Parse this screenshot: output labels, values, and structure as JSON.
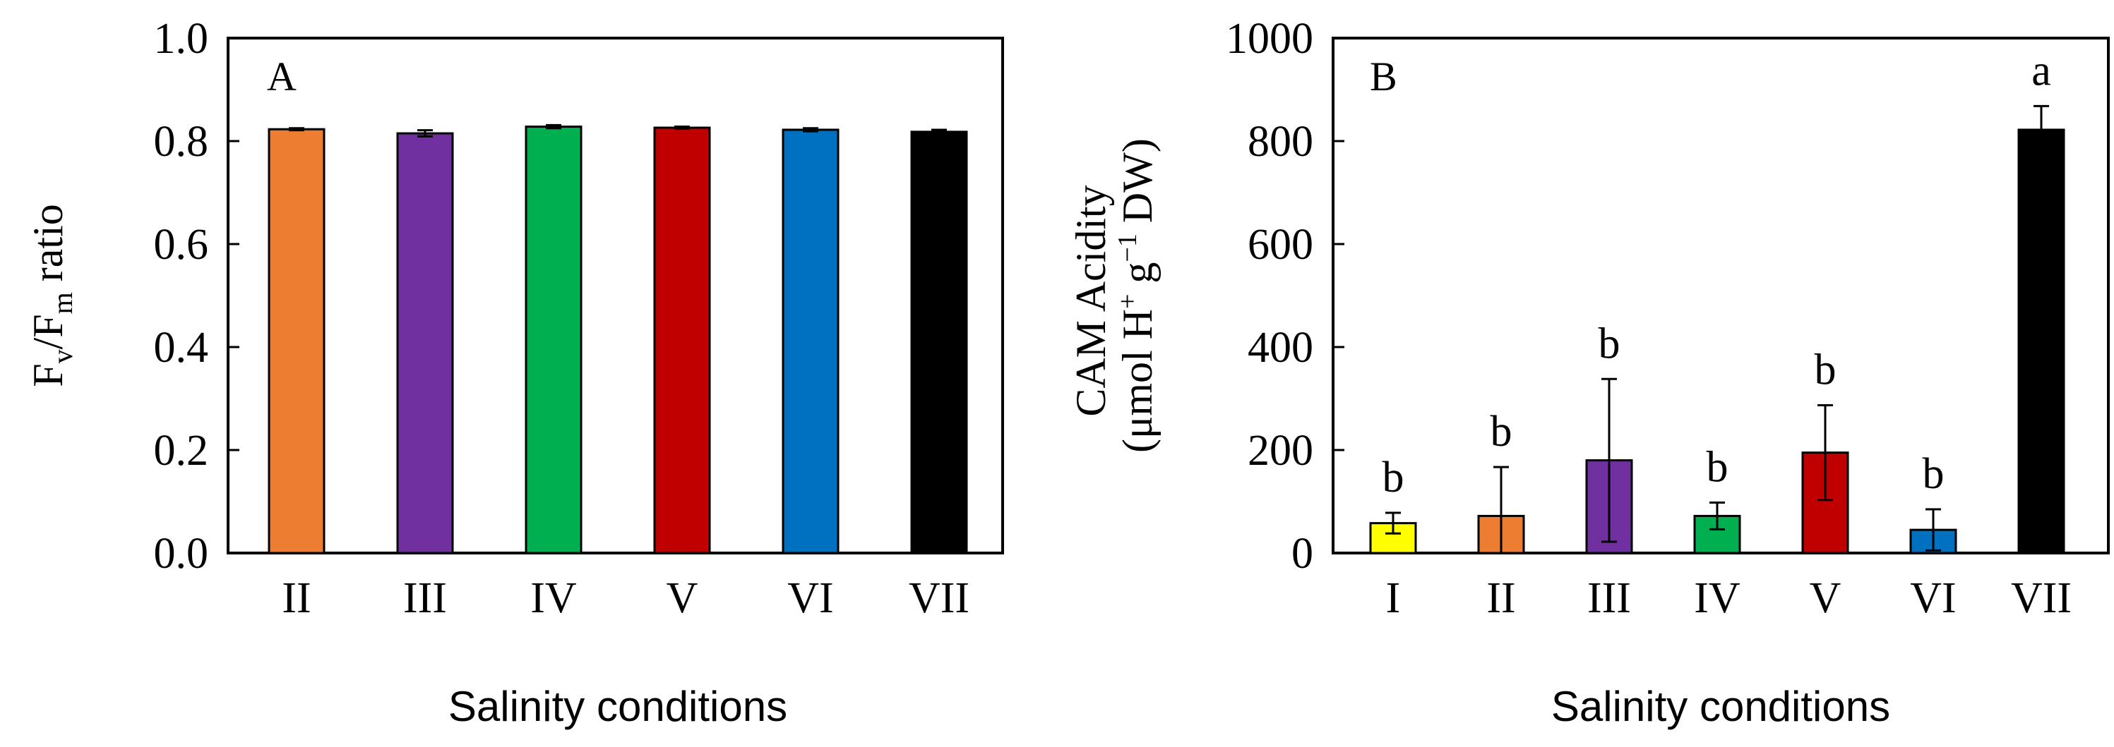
{
  "chart_data": [
    {
      "type": "bar",
      "panel_label": "A",
      "categories": [
        "II",
        "III",
        "IV",
        "V",
        "VI",
        "VII"
      ],
      "values": [
        0.823,
        0.815,
        0.828,
        0.826,
        0.822,
        0.818
      ],
      "errors": [
        0.002,
        0.006,
        0.003,
        0.002,
        0.003,
        0.004
      ],
      "colors": [
        "#ED7D31",
        "#7030A0",
        "#00B050",
        "#C00000",
        "#0070C0",
        "#000000"
      ],
      "ylabel": {
        "main": "F",
        "sub1": "v",
        "slash": "/F",
        "sub2": "m",
        "suffix": " ratio"
      },
      "xlabel": "Salinity conditions",
      "ylim": [
        0,
        1.0
      ],
      "yticks": [
        "0.0",
        "0.2",
        "0.4",
        "0.6",
        "0.8",
        "1.0"
      ],
      "significance": []
    },
    {
      "type": "bar",
      "panel_label": "B",
      "categories": [
        "I",
        "II",
        "III",
        "IV",
        "V",
        "VI",
        "VII"
      ],
      "values": [
        58,
        72,
        180,
        72,
        195,
        45,
        822
      ],
      "errors": [
        20,
        95,
        158,
        26,
        92,
        40,
        46
      ],
      "colors": [
        "#FFFF00",
        "#ED7D31",
        "#7030A0",
        "#00B050",
        "#C00000",
        "#0070C0",
        "#000000"
      ],
      "ylabel": {
        "line1": "CAM Acidity",
        "line2_a": "(μmol H",
        "line2_sup1": "+",
        "line2_b": " g",
        "line2_sup2": "−1",
        "line2_c": " DW)"
      },
      "xlabel": "Salinity conditions",
      "ylim": [
        0,
        1000
      ],
      "yticks": [
        "0",
        "200",
        "400",
        "600",
        "800",
        "1000"
      ],
      "significance": [
        "b",
        "b",
        "b",
        "b",
        "b",
        "b",
        "a"
      ]
    }
  ]
}
